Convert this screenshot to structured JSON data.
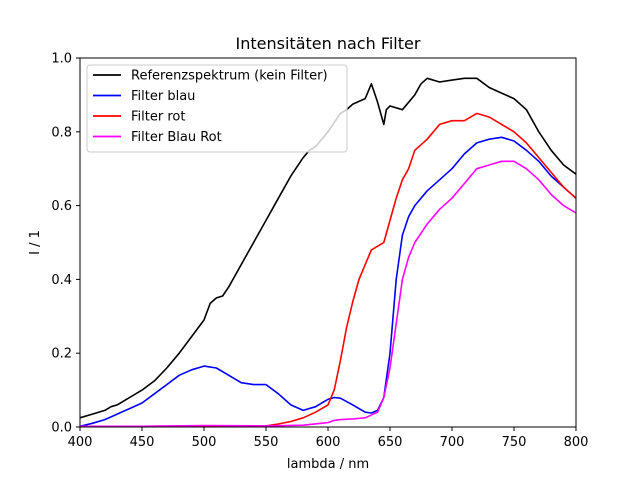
{
  "chart_data": {
    "type": "line",
    "title": "Intensitäten nach Filter",
    "xlabel": "lambda / nm",
    "ylabel": "I / 1",
    "xlim": [
      400,
      800
    ],
    "ylim": [
      0,
      1.0
    ],
    "x_ticks": [
      400,
      450,
      500,
      550,
      600,
      650,
      700,
      750,
      800
    ],
    "y_ticks": [
      0.0,
      0.2,
      0.4,
      0.6,
      0.8,
      1.0
    ],
    "x_tick_labels": [
      "400",
      "450",
      "500",
      "550",
      "600",
      "650",
      "700",
      "750",
      "800"
    ],
    "y_tick_labels": [
      "0.0",
      "0.2",
      "0.4",
      "0.6",
      "0.8",
      "1.0"
    ],
    "grid": false,
    "legend_position": "top-left",
    "series": [
      {
        "name": "Referenzspektrum (kein Filter)",
        "color": "#000000",
        "x": [
          400,
          410,
          420,
          425,
          430,
          440,
          450,
          460,
          470,
          480,
          490,
          500,
          505,
          510,
          515,
          520,
          530,
          540,
          550,
          560,
          570,
          580,
          585,
          590,
          600,
          610,
          615,
          620,
          630,
          635,
          640,
          645,
          647,
          650,
          660,
          665,
          670,
          675,
          680,
          690,
          700,
          710,
          720,
          730,
          740,
          750,
          760,
          770,
          780,
          790,
          800
        ],
        "y": [
          0.025,
          0.035,
          0.045,
          0.055,
          0.06,
          0.08,
          0.1,
          0.125,
          0.16,
          0.2,
          0.245,
          0.29,
          0.335,
          0.35,
          0.355,
          0.38,
          0.44,
          0.5,
          0.56,
          0.62,
          0.68,
          0.73,
          0.75,
          0.76,
          0.8,
          0.85,
          0.86,
          0.875,
          0.89,
          0.93,
          0.88,
          0.82,
          0.86,
          0.87,
          0.86,
          0.88,
          0.9,
          0.93,
          0.945,
          0.935,
          0.94,
          0.945,
          0.945,
          0.92,
          0.905,
          0.89,
          0.86,
          0.8,
          0.75,
          0.71,
          0.685
        ]
      },
      {
        "name": "Filter blau",
        "color": "#0000ff",
        "x": [
          400,
          410,
          420,
          430,
          440,
          450,
          460,
          470,
          480,
          490,
          500,
          510,
          520,
          530,
          540,
          550,
          560,
          570,
          580,
          590,
          600,
          605,
          610,
          620,
          630,
          635,
          640,
          645,
          650,
          655,
          660,
          665,
          670,
          680,
          690,
          700,
          710,
          720,
          730,
          740,
          750,
          760,
          770,
          780,
          790,
          800
        ],
        "y": [
          0.002,
          0.01,
          0.02,
          0.035,
          0.05,
          0.065,
          0.09,
          0.115,
          0.14,
          0.155,
          0.165,
          0.16,
          0.14,
          0.12,
          0.115,
          0.115,
          0.09,
          0.06,
          0.045,
          0.055,
          0.075,
          0.08,
          0.078,
          0.06,
          0.04,
          0.038,
          0.045,
          0.08,
          0.2,
          0.4,
          0.52,
          0.57,
          0.6,
          0.64,
          0.67,
          0.7,
          0.74,
          0.77,
          0.78,
          0.785,
          0.775,
          0.75,
          0.72,
          0.68,
          0.65,
          0.62
        ]
      },
      {
        "name": "Filter rot",
        "color": "#ff0000",
        "x": [
          400,
          450,
          500,
          550,
          560,
          570,
          580,
          590,
          595,
          600,
          605,
          610,
          615,
          620,
          625,
          630,
          635,
          640,
          645,
          650,
          655,
          660,
          665,
          670,
          680,
          690,
          700,
          710,
          720,
          730,
          740,
          750,
          760,
          770,
          780,
          790,
          800
        ],
        "y": [
          0.002,
          0.002,
          0.003,
          0.003,
          0.008,
          0.015,
          0.025,
          0.04,
          0.05,
          0.06,
          0.1,
          0.18,
          0.27,
          0.34,
          0.4,
          0.44,
          0.48,
          0.49,
          0.5,
          0.56,
          0.62,
          0.67,
          0.7,
          0.75,
          0.78,
          0.82,
          0.83,
          0.83,
          0.85,
          0.84,
          0.82,
          0.8,
          0.77,
          0.73,
          0.69,
          0.65,
          0.62
        ]
      },
      {
        "name": "Filter Blau Rot",
        "color": "#ff00ff",
        "x": [
          400,
          450,
          500,
          550,
          580,
          600,
          605,
          610,
          620,
          630,
          640,
          645,
          650,
          655,
          660,
          665,
          670,
          680,
          690,
          700,
          710,
          720,
          730,
          740,
          750,
          760,
          770,
          780,
          790,
          800
        ],
        "y": [
          0.002,
          0.002,
          0.004,
          0.003,
          0.005,
          0.012,
          0.018,
          0.02,
          0.022,
          0.025,
          0.04,
          0.08,
          0.16,
          0.28,
          0.4,
          0.46,
          0.5,
          0.55,
          0.59,
          0.62,
          0.66,
          0.7,
          0.71,
          0.72,
          0.72,
          0.7,
          0.67,
          0.63,
          0.6,
          0.58
        ]
      }
    ]
  }
}
